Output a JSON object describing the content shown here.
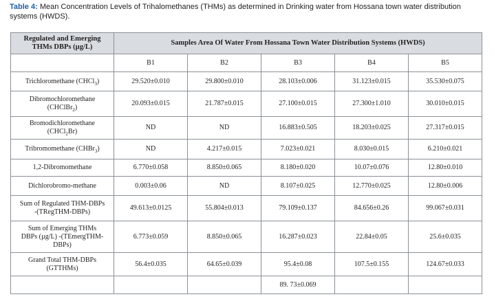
{
  "caption": {
    "label": "Table 4:",
    "text": "Mean Concentration Levels of Trihalomethanes (THMs) as determined in Drinking water from Hossana town water distribution systems (HWDS)."
  },
  "table": {
    "header": [
      "Regulated and Emerging THMs DBPs (µg/L)",
      "Samples Area Of Water From Hossana Town Water Distribution Systems (HWDS)"
    ],
    "columns": [
      "B1",
      "B2",
      "B3",
      "B4",
      "B5"
    ],
    "rows": [
      {
        "label": [
          [
            "Trichloromethane (CHCl",
            "3",
            ")"
          ]
        ],
        "values": [
          "29.520±0.010",
          "29.800±0.010",
          "28.103±0.006",
          "31.123±0.015",
          "35.530±0.075"
        ]
      },
      {
        "label": [
          [
            "Dibromochloromethane"
          ],
          [
            "(CHClBr",
            "2",
            ")"
          ]
        ],
        "values": [
          "20.093±0.015",
          "21.787±0.015",
          "27.100±0.015",
          "27.300±1.010",
          "30.010±0.015"
        ]
      },
      {
        "label": [
          [
            "Bromodichloromethane"
          ],
          [
            "(CHCl",
            "2",
            "Br)"
          ]
        ],
        "values": [
          "ND",
          "ND",
          "16.883±0.505",
          "18.203±0.025",
          "27.317±0.015"
        ]
      },
      {
        "label": [
          [
            "Tribromomethane (CHBr",
            "3",
            ")"
          ]
        ],
        "values": [
          "ND",
          "4.217±0.015",
          "7.023±0.021",
          "8.030±0.015",
          "6.210±0.021"
        ]
      },
      {
        "label": [
          [
            "1,2-Dibromomethane"
          ]
        ],
        "values": [
          "6.770±0.058",
          "8.850±0.065",
          "8.180±0.020",
          "10.07±0.076",
          "12.80±0.010"
        ]
      },
      {
        "label": [
          [
            "Dichlorobromo-methane"
          ]
        ],
        "values": [
          "0.003±0.06",
          "ND",
          "8.107±0.025",
          "12.770±0.025",
          "12.80±0.006"
        ]
      },
      {
        "label": [
          [
            "Sum of Regulated THM-DBPs"
          ],
          [
            "-(TRegTHM-DBPs)"
          ]
        ],
        "values": [
          "49.613±0.0125",
          "55.804±0.013",
          "79.109±0.137",
          "84.656±0.26",
          "99.067±0.031"
        ]
      },
      {
        "label": [
          [
            "Sum of Emerging THMs"
          ],
          [
            "DBPs (µg/L) -(TEmergTHM-"
          ],
          [
            "DBPs)"
          ]
        ],
        "values": [
          "6.773±0.059",
          "8.850±0.065",
          "16.287±0.023",
          "22.84±0.05",
          "25.6±0.035"
        ]
      },
      {
        "label": [
          [
            "Grand Total THM-DBPs"
          ],
          [
            "(GTTHMs)"
          ]
        ],
        "values": [
          "56.4±0.035",
          "64.65±0.039",
          "95.4±0.08",
          "107.5±0.155",
          "124.67±0.033"
        ]
      },
      {
        "label": null,
        "values": [
          null,
          null,
          "89. 73±0.069",
          null,
          null
        ]
      }
    ]
  }
}
